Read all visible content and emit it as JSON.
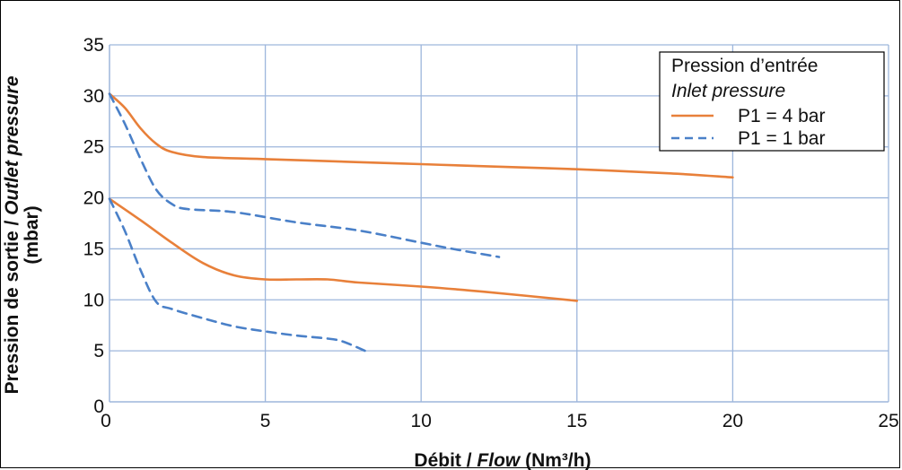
{
  "chart_data": {
    "type": "line",
    "xlabel": {
      "prefix": "Débit / ",
      "italic": "Flow",
      "suffix": " (Nm³/h)"
    },
    "ylabel": {
      "line1_prefix": "Pression de sortie / ",
      "line1_italic": "Outlet pressure",
      "line2": "(mbar)"
    },
    "xlim": [
      0,
      25
    ],
    "ylim": [
      0,
      35
    ],
    "x_ticks": [
      "0",
      "5",
      "10",
      "15",
      "20",
      "25"
    ],
    "y_ticks": [
      "0",
      "5",
      "10",
      "15",
      "20",
      "25",
      "30",
      "35"
    ],
    "grid": true,
    "legend": {
      "placement": "top-right",
      "title": "Pression d’entrée",
      "subtitle": "Inlet pressure",
      "entries": [
        "P1 = 4 bar",
        "P1 = 1 bar"
      ]
    },
    "colors": {
      "orange": "#E8803A",
      "blue": "#4A80C8",
      "grid": "#9DB6DC"
    },
    "series": [
      {
        "name": "P1 = 4 bar",
        "style": "solid",
        "color": "#E8803A",
        "points": [
          [
            0,
            30.2
          ],
          [
            0.5,
            28.8
          ],
          [
            1,
            26.8
          ],
          [
            1.5,
            25.3
          ],
          [
            2,
            24.5
          ],
          [
            3,
            24.0
          ],
          [
            5,
            23.8
          ],
          [
            8,
            23.5
          ],
          [
            10,
            23.3
          ],
          [
            12,
            23.1
          ],
          [
            15,
            22.8
          ],
          [
            18,
            22.4
          ],
          [
            20,
            22.0
          ]
        ]
      },
      {
        "name": "P1 = 4 bar",
        "style": "solid",
        "color": "#E8803A",
        "points": [
          [
            0,
            19.9
          ],
          [
            1,
            17.8
          ],
          [
            2,
            15.6
          ],
          [
            3,
            13.6
          ],
          [
            4,
            12.4
          ],
          [
            5,
            12.0
          ],
          [
            6,
            12.0
          ],
          [
            7,
            12.0
          ],
          [
            8,
            11.7
          ],
          [
            10,
            11.3
          ],
          [
            12,
            10.8
          ],
          [
            15,
            9.9
          ]
        ]
      },
      {
        "name": "P1 = 1 bar",
        "style": "dashed",
        "color": "#4A80C8",
        "points": [
          [
            0,
            30.2
          ],
          [
            0.5,
            27.2
          ],
          [
            1,
            23.8
          ],
          [
            1.5,
            20.8
          ],
          [
            2,
            19.4
          ],
          [
            2.5,
            18.9
          ],
          [
            4,
            18.6
          ],
          [
            6,
            17.6
          ],
          [
            8,
            16.8
          ],
          [
            10,
            15.6
          ],
          [
            11,
            15.0
          ],
          [
            12.5,
            14.2
          ]
        ]
      },
      {
        "name": "P1 = 1 bar",
        "style": "dashed",
        "color": "#4A80C8",
        "points": [
          [
            0,
            19.9
          ],
          [
            0.5,
            16.7
          ],
          [
            1,
            12.9
          ],
          [
            1.5,
            9.8
          ],
          [
            2,
            9.1
          ],
          [
            3,
            8.2
          ],
          [
            4,
            7.4
          ],
          [
            5,
            6.9
          ],
          [
            6,
            6.5
          ],
          [
            7,
            6.2
          ],
          [
            7.5,
            5.9
          ],
          [
            8.2,
            5.0
          ]
        ]
      }
    ]
  }
}
